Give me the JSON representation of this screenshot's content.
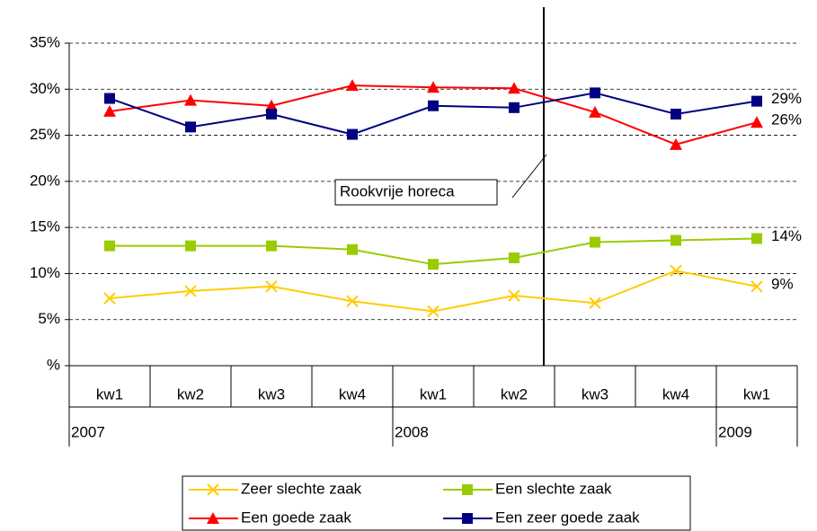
{
  "chart_data": {
    "type": "line",
    "categories": [
      "kw1",
      "kw2",
      "kw3",
      "kw4",
      "kw1",
      "kw2",
      "kw3",
      "kw4",
      "kw1"
    ],
    "years": [
      "2007",
      null,
      null,
      null,
      "2008",
      null,
      null,
      null,
      "2009"
    ],
    "ylim": [
      0,
      35
    ],
    "yticks": [
      {
        "value": 0,
        "label": "%"
      },
      {
        "value": 5,
        "label": "5%"
      },
      {
        "value": 10,
        "label": "10%"
      },
      {
        "value": 15,
        "label": "15%"
      },
      {
        "value": 20,
        "label": "20%"
      },
      {
        "value": 25,
        "label": "25%"
      },
      {
        "value": 30,
        "label": "30%"
      },
      {
        "value": 35,
        "label": "35%"
      }
    ],
    "grid": true,
    "annotation": "Rookvrije horeca",
    "series": [
      {
        "name": "Zeer slechte zaak",
        "color": "#ffcc00",
        "marker": "x",
        "values": [
          7.3,
          8.1,
          8.6,
          7.0,
          5.9,
          7.6,
          6.8,
          10.3,
          8.6
        ],
        "value_labels": [
          null,
          null,
          null,
          null,
          null,
          null,
          null,
          null,
          "9%"
        ]
      },
      {
        "name": "Een slechte zaak",
        "color": "#99cc00",
        "marker": "square",
        "values": [
          13.0,
          13.0,
          13.0,
          12.6,
          11.0,
          11.7,
          13.4,
          13.6,
          13.8
        ],
        "value_labels": [
          null,
          null,
          null,
          null,
          null,
          null,
          null,
          null,
          "14%"
        ]
      },
      {
        "name": "Een goede zaak",
        "color": "#ff0000",
        "marker": "triangle",
        "values": [
          27.6,
          28.8,
          28.2,
          30.4,
          30.2,
          30.1,
          27.5,
          24.0,
          26.4
        ],
        "value_labels": [
          null,
          null,
          null,
          null,
          null,
          null,
          null,
          null,
          "26%"
        ]
      },
      {
        "name": "Een zeer goede zaak",
        "color": "#000080",
        "marker": "square",
        "values": [
          29.0,
          25.9,
          27.3,
          25.1,
          28.2,
          28.0,
          29.6,
          27.3,
          28.7
        ],
        "value_labels": [
          null,
          null,
          null,
          null,
          null,
          null,
          null,
          null,
          "29%"
        ]
      }
    ]
  }
}
